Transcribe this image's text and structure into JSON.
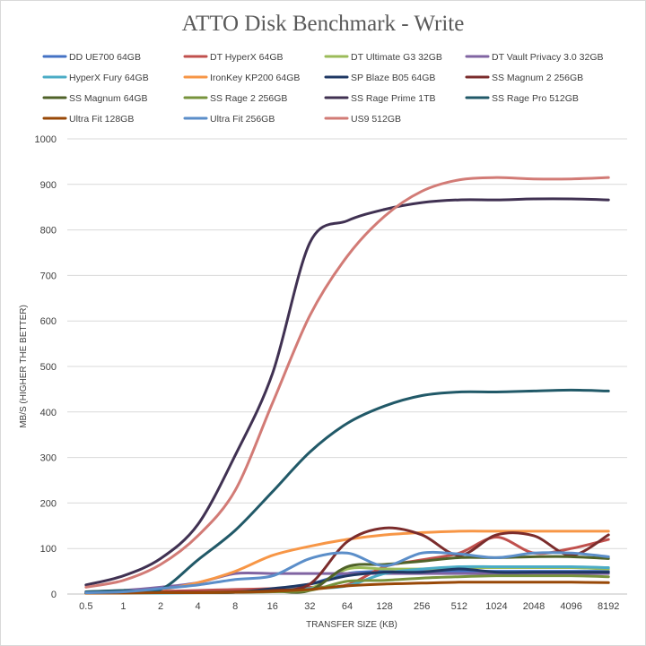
{
  "chart_data": {
    "type": "line",
    "title": "ATTO Disk Benchmark - Write",
    "xlabel": "TRANSFER SIZE (KB)",
    "ylabel": "MB/S (HIGHER THE BETTER)",
    "ylim": [
      0,
      1000
    ],
    "yticks": [
      0,
      100,
      200,
      300,
      400,
      500,
      600,
      700,
      800,
      900,
      1000
    ],
    "categories": [
      "0.5",
      "1",
      "2",
      "4",
      "8",
      "16",
      "32",
      "64",
      "128",
      "256",
      "512",
      "1024",
      "2048",
      "4096",
      "8192"
    ],
    "grid": true,
    "legend_position": "top",
    "series": [
      {
        "name": "DD UE700 64GB",
        "color": "#4472c4",
        "values": [
          2,
          3,
          3,
          3,
          4,
          10,
          22,
          45,
          50,
          50,
          50,
          50,
          50,
          50,
          50
        ]
      },
      {
        "name": "DT HyperX 64GB",
        "color": "#c0504d",
        "values": [
          3,
          4,
          6,
          8,
          10,
          12,
          15,
          20,
          60,
          75,
          90,
          125,
          90,
          100,
          120
        ]
      },
      {
        "name": "DT Ultimate G3 32GB",
        "color": "#9bbb59",
        "values": [
          2,
          3,
          3,
          3,
          4,
          10,
          12,
          55,
          55,
          55,
          58,
          58,
          58,
          58,
          55
        ]
      },
      {
        "name": "DT Vault Privacy 3.0 32GB",
        "color": "#8064a2",
        "values": [
          5,
          8,
          15,
          25,
          45,
          45,
          45,
          45,
          45,
          45,
          45,
          45,
          45,
          45,
          45
        ]
      },
      {
        "name": "HyperX Fury 64GB",
        "color": "#4bacc6",
        "values": [
          2,
          2,
          2,
          3,
          4,
          10,
          12,
          18,
          45,
          55,
          60,
          60,
          60,
          60,
          58
        ]
      },
      {
        "name": "IronKey KP200 64GB",
        "color": "#f79646",
        "values": [
          3,
          5,
          10,
          25,
          50,
          85,
          105,
          120,
          130,
          135,
          138,
          138,
          138,
          138,
          138
        ]
      },
      {
        "name": "SP Blaze B05 64GB",
        "color": "#1f3864",
        "values": [
          2,
          3,
          3,
          3,
          4,
          12,
          22,
          40,
          48,
          48,
          55,
          48,
          48,
          48,
          48
        ]
      },
      {
        "name": "SS Magnum 2 256GB",
        "color": "#7b2c2c",
        "values": [
          2,
          3,
          4,
          4,
          5,
          8,
          22,
          115,
          145,
          130,
          85,
          130,
          128,
          85,
          130
        ]
      },
      {
        "name": "SS Magnum 64GB",
        "color": "#4f6228",
        "values": [
          2,
          3,
          3,
          3,
          4,
          6,
          8,
          60,
          65,
          72,
          80,
          80,
          82,
          82,
          78
        ]
      },
      {
        "name": "SS Rage 2 256GB",
        "color": "#77933c",
        "values": [
          2,
          3,
          3,
          3,
          4,
          5,
          8,
          28,
          30,
          35,
          38,
          40,
          40,
          40,
          38
        ]
      },
      {
        "name": "SS Rage Prime 1TB",
        "color": "#403152",
        "values": [
          20,
          40,
          78,
          153,
          305,
          485,
          772,
          820,
          845,
          860,
          866,
          866,
          868,
          868,
          866
        ]
      },
      {
        "name": "SS Rage Pro 512GB",
        "color": "#215968",
        "values": [
          5,
          8,
          10,
          75,
          140,
          225,
          312,
          375,
          413,
          436,
          444,
          444,
          446,
          448,
          446
        ]
      },
      {
        "name": "Ultra Fit 128GB",
        "color": "#984807",
        "values": [
          2,
          2,
          3,
          3,
          4,
          6,
          10,
          18,
          22,
          24,
          26,
          26,
          26,
          26,
          25
        ]
      },
      {
        "name": "Ultra Fit 256GB",
        "color": "#5b8ec9",
        "values": [
          3,
          5,
          12,
          20,
          32,
          40,
          78,
          90,
          62,
          90,
          88,
          80,
          90,
          90,
          82
        ]
      },
      {
        "name": "US9 512GB",
        "color": "#d27b76",
        "values": [
          15,
          30,
          65,
          128,
          228,
          420,
          612,
          742,
          830,
          885,
          910,
          915,
          912,
          912,
          915
        ]
      }
    ]
  }
}
